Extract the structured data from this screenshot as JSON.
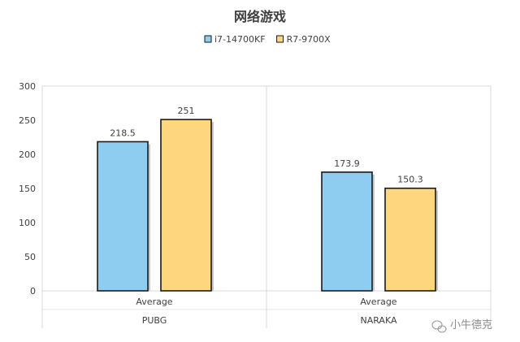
{
  "chart_data": {
    "type": "bar",
    "title": "网络游戏",
    "legend_position": "top",
    "grid": false,
    "ylim": [
      0,
      300
    ],
    "yticks": [
      0,
      50,
      100,
      150,
      200,
      250,
      300
    ],
    "groups": [
      {
        "name": "PUBG",
        "categories": [
          "Average"
        ]
      },
      {
        "name": "NARAKA",
        "categories": [
          "Average"
        ]
      }
    ],
    "series": [
      {
        "name": "i7-14700KF",
        "color": "#8ecdf0",
        "values": [
          218.5,
          173.9
        ]
      },
      {
        "name": "R7-9700X",
        "color": "#fdd67e",
        "values": [
          251,
          150.3
        ]
      }
    ]
  },
  "watermark": {
    "icon": "wechat-logo-icon",
    "text": "小牛德克"
  }
}
